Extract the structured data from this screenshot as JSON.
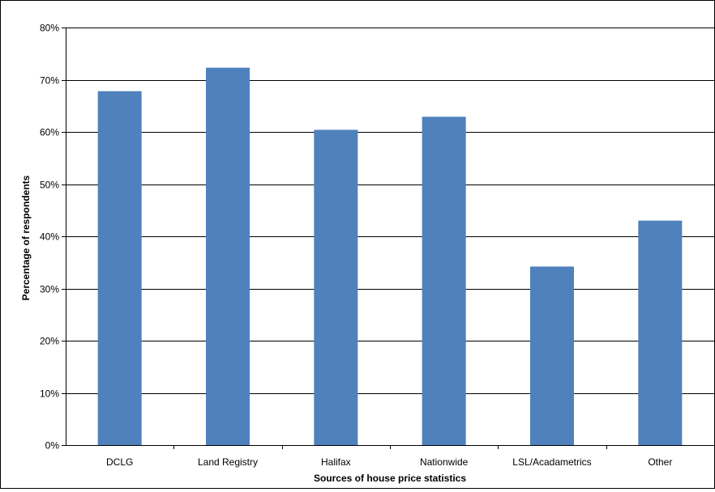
{
  "chart_data": {
    "type": "bar",
    "categories": [
      "DCLG",
      "Land Registry",
      "Halifax",
      "Nationwide",
      "LSL/Acadametrics",
      "Other"
    ],
    "values": [
      67.8,
      72.3,
      60.4,
      62.9,
      34.2,
      43.0
    ],
    "xlabel": "Sources of house price statistics",
    "ylabel": "Percentage of respondents",
    "ylim": [
      0,
      80
    ],
    "y_ticks": [
      0,
      10,
      20,
      30,
      40,
      50,
      60,
      70,
      80
    ],
    "y_tick_format": "%",
    "grid": true,
    "legend": "none",
    "bar_color": "#4F81BD",
    "gridline_color": "#000000"
  }
}
